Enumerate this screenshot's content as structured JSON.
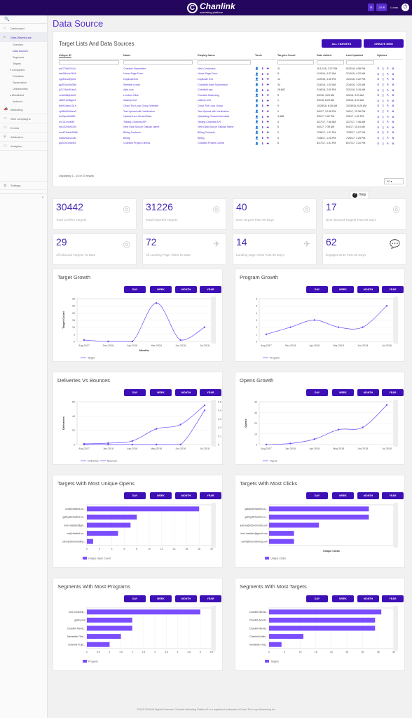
{
  "header": {
    "logo_name": "Chanlink",
    "logo_sub": "marketing platform",
    "logo_mark": "C",
    "badge1": "✉",
    "badge2": "20 ✉",
    "username": "Lucas",
    "power_icon": "⏻"
  },
  "sidebar": {
    "search_icon": "🔍",
    "items": [
      {
        "icon": "home-icon",
        "glyph": "⌂",
        "label": "Dashboard"
      },
      {
        "icon": "database-icon",
        "glyph": "≡",
        "label": "Data Warehouse"
      }
    ],
    "subs": [
      "Overview",
      "Data Sources",
      "Segments",
      "Targets"
    ],
    "companies": "Companies",
    "company_subs": [
      "Chanlinks",
      "Suppression",
      "Unsubscribes"
    ],
    "blocklisted": "Blocklisted",
    "archived": "Archived",
    "items2": [
      {
        "icon": "marketing-icon",
        "glyph": "📣",
        "label": "Marketing"
      },
      {
        "icon": "web-campaigns-icon",
        "glyph": "▭",
        "label": "Web campaigns"
      },
      {
        "icon": "events-icon",
        "glyph": "▭",
        "label": "Events"
      },
      {
        "icon": "attribution-icon",
        "glyph": "⚲",
        "label": "Attribution"
      },
      {
        "icon": "analytics-icon",
        "glyph": "▭",
        "label": "Analytics"
      }
    ],
    "settings": "Settings",
    "settings_glyph": "⚙",
    "collapse_glyph": "‹"
  },
  "page": {
    "title": "Data Source"
  },
  "table_card": {
    "title": "Target Lists And Data Sources",
    "btn_all": "ALL TARGETS",
    "btn_new": "CREATE NEW",
    "columns": [
      "Unique ID",
      "Name",
      "Display Name",
      "Tools",
      "Targets Count",
      "Date Added",
      "Last Updated",
      "Options"
    ],
    "tools_glyph": "👤 ⬇ ✚",
    "options_glyph": "⬇ ▯ ✎ ⊗",
    "rows": [
      [
        "aa727a61911d",
        "Chanlink Newsletter",
        "New Customers",
        "41",
        "11/12/16, 2:37 PM",
        "5/23/18, 4:58 PM"
      ],
      [
        "eeb58m4c2b2b",
        "Home Page Form",
        "Home Page Form",
        "8",
        "1/19/16, 4:22 AM",
        "2/19/16, 4:22 AM"
      ],
      [
        "cg654vvdfyb5d",
        "Duplicatetest",
        "Duplicate test",
        "12",
        "1/19/16, 3:45 PM",
        "1/21/16, 4:22 PM"
      ],
      [
        "gp551ncf0y38b",
        "Website Leads",
        "ChanlinkLeads Submission",
        "34",
        "2/16/16, 1:20 AM",
        "2/18/16, 1:20 AM"
      ],
      [
        "p2174bcf91ea3",
        "data.com",
        "ChanlinkLeys",
        "28,667",
        "2/18/16, 2:30 PM",
        "3/31/16, 3:16 AM"
      ],
      [
        "vxd4486yt4e89",
        "Lenders Click",
        "Chanlink Marketing",
        "5",
        "3/9/16, 3:29 AM",
        "3/9/16, 3:29 AM"
      ],
      [
        "c6871bcf8gpz3",
        "luisleep test",
        "luisleep test",
        "1",
        "3/9/16, 8:23 AM",
        "3/9/16, 8:23 AM"
      ],
      [
        "fpb914adc101e",
        "Close The Loop Group Website",
        "Close The Loop Group",
        "9",
        "10/28/16, 6:26 AM",
        "10/28/16, 6:26 AM"
      ],
      [
        "cp88h90bfhea3",
        "Test Upload with Verification",
        "Test Upload with Verification",
        "0",
        "3/9/17, 12:36 PM",
        "3/9/17, 12:36 PM"
      ],
      [
        "dc54pcxfh898f",
        "Upload from Gerard Data",
        "Uploading Gerards bad data",
        "4,488",
        "3/9/17, 1:02 PM",
        "3/9/17, 1:02 PM"
      ],
      [
        "c4131rvcd08f",
        "Testing Chanlink API",
        "Testing Chanlink API",
        "4",
        "3/17/17, 7:46 AM",
        "3/17/17, 7:46 AM"
      ],
      [
        "m6102r4fn020o",
        "New Data Source Display Name",
        "New Data Source Display Name",
        "5",
        "4/4/17, 7:39 AM",
        "5/4/17, 11:14 AM"
      ],
      [
        "oxe67bdefc5988",
        "Billing Contacts",
        "Billing Contacts",
        "0",
        "7/28/17, 1:07 PM",
        "7/28/17, 1:07 PM"
      ],
      [
        "hd452bdcvc44c",
        "Billing",
        "Billing",
        "5",
        "7/28/17, 1:25 PM",
        "7/28/17, 1:25 PM"
      ],
      [
        "ja151nr1ebe83",
        "Chanlink Project Clients",
        "Chanlink Project Clients",
        "6",
        "8/17/17, 1:41 PM",
        "8/17/17, 1:41 PM"
      ]
    ],
    "displaying": "Displaying 1 - 15 of 15 results",
    "page_size": "20"
  },
  "help": {
    "label": "Help",
    "icon": "?"
  },
  "stats": [
    {
      "value": "30442",
      "label": "Total Confirm Targets",
      "icon": "target-icon",
      "glyph": "◎"
    },
    {
      "value": "31226",
      "label": "Total Imported Targets",
      "icon": "target-icon",
      "glyph": "◎"
    },
    {
      "value": "40",
      "label": "New Targets Past 90 Days",
      "icon": "target-icon",
      "glyph": "◎"
    },
    {
      "value": "17",
      "label": "New Inbound Targets Past 90 Days",
      "icon": "target-icon",
      "glyph": "◎"
    },
    {
      "value": "29",
      "label": "All Inbound Targets To Date",
      "icon": "target-icon",
      "glyph": "◎"
    },
    {
      "value": "72",
      "label": "All Landing Page Visits To Date",
      "icon": "plane-icon",
      "glyph": "✈"
    },
    {
      "value": "14",
      "label": "Landing page Visits Past 90 Days",
      "icon": "plane-icon",
      "glyph": "✈"
    },
    {
      "value": "62",
      "label": "Engagements Past 30 Days",
      "icon": "chat-icon",
      "glyph": "💬"
    }
  ],
  "period_buttons": [
    "DAY",
    "WEEK",
    "MONTH",
    "YEAR"
  ],
  "footer": "©2015-2018 All Rights Reserved. Chanlink Marketing Platform® is a registered trademark of Close The Loop Advertising Inc",
  "chart_data": [
    {
      "id": "target-growth",
      "type": "line",
      "title": "Target Growth",
      "categories": [
        "Aug-2017",
        "Dec-2018",
        "Apr-2018",
        "Mar-2018",
        "Jun-2018",
        "Jul-2018"
      ],
      "ylim": [
        0,
        30
      ],
      "yticks": [
        0,
        5,
        10,
        15,
        20,
        25,
        30
      ],
      "ylabel": "Target Count",
      "xlabel": "Months",
      "series": [
        {
          "name": "Target",
          "values": [
            1,
            0,
            0,
            27,
            1,
            10
          ]
        }
      ]
    },
    {
      "id": "program-growth",
      "type": "line",
      "title": "Program Growth",
      "categories": [
        "Aug-2017",
        "Dec-2018",
        "Apr-2018",
        "Mar-2018",
        "Jun-2018",
        "Jul-2018"
      ],
      "ylim": [
        0,
        6
      ],
      "yticks": [
        0,
        1,
        2,
        3,
        4,
        5,
        6
      ],
      "ylabel": "",
      "xlabel": "",
      "series": [
        {
          "name": "Program",
          "values": [
            1,
            2,
            3,
            2,
            2,
            5
          ]
        }
      ]
    },
    {
      "id": "deliveries-bounces",
      "type": "line",
      "title": "Deliveries Vs Bounces",
      "categories": [
        "Aug-2017",
        "Jan-2018",
        "Apr-2018",
        "May-2018",
        "Jun-2018",
        "Jul-2018"
      ],
      "ylim": [
        0,
        60
      ],
      "yticks": [
        0,
        20,
        40,
        60
      ],
      "y2lim": [
        0,
        0.5
      ],
      "y2ticks": [
        0,
        0.1,
        0.2,
        0.3,
        0.4,
        0.5
      ],
      "ylabel": "Deliveries",
      "y2label": "Bounces",
      "xlabel": "",
      "series": [
        {
          "name": "Deliveries",
          "values": [
            1,
            2,
            5,
            22,
            28,
            55
          ]
        },
        {
          "name": "Bounces",
          "values": [
            0,
            0,
            0,
            0,
            0,
            0.4
          ]
        }
      ]
    },
    {
      "id": "opens-growth",
      "type": "line",
      "title": "Opens Growth",
      "categories": [
        "Aug-2017",
        "Jan-2018",
        "Apr-2018",
        "May-2018",
        "Jun-2018",
        "Jul-2018"
      ],
      "ylim": [
        0,
        40
      ],
      "yticks": [
        0,
        10,
        20,
        30,
        40
      ],
      "ylabel": "Opens",
      "xlabel": "",
      "series": [
        {
          "name": "Opens",
          "values": [
            0,
            1,
            5,
            14,
            16,
            37
          ]
        }
      ]
    },
    {
      "id": "most-unique-opens",
      "type": "bar",
      "title": "Targets With Most Unique Opens",
      "categories": [
        "curt@chanlink.co...",
        "gabby@chanlink.co...",
        "kurk.madden@gm...",
        "sc@chanlink.co...",
        "carm@dmcmanding..."
      ],
      "values": [
        18,
        8,
        7,
        5,
        1
      ],
      "xlim": [
        0,
        20
      ],
      "xticks": [
        0,
        2,
        4,
        6,
        8,
        10,
        12,
        14,
        16,
        18,
        20
      ],
      "series": [
        {
          "name": "Unique Open Count"
        }
      ]
    },
    {
      "id": "most-clicks",
      "type": "bar",
      "title": "Targets With Most Clicks",
      "categories": [
        "gabby@chanlink.co...",
        "gabby@chanlink.co...",
        "joanna@reberrmedia.com",
        "kurk.madden@gmail.com",
        "carm@dmcmanding.com"
      ],
      "values": [
        4,
        4,
        2,
        1,
        1
      ],
      "xlim": [
        0,
        5
      ],
      "xticks": [],
      "xlabel": "Unique Clicks",
      "series": [
        {
          "name": "Unique Clicks"
        }
      ]
    },
    {
      "id": "segments-programs",
      "type": "bar",
      "title": "Segments With Most Programs",
      "categories": [
        "Kurt (Chanlink...",
        "gabby test",
        "Chanlink Newsl...",
        "Newsletter Test...",
        "Chanlink Proje..."
      ],
      "values": [
        5,
        2,
        2,
        1.5,
        1
      ],
      "xlim": [
        0,
        5.5
      ],
      "xticks": [
        0,
        0.5,
        1,
        1.5,
        2,
        2.5,
        3,
        3.5,
        4,
        4.5,
        5,
        5.5
      ],
      "series": [
        {
          "name": "Program"
        }
      ]
    },
    {
      "id": "segments-targets",
      "type": "bar",
      "title": "Segments With Most Targets",
      "categories": [
        "Chanlink Newsl...",
        "Chanlink Newsl...",
        "Chanlink Newsl...",
        "Chanlink Mailin...",
        "Newsletter Test..."
      ],
      "values": [
        36,
        34,
        34,
        11,
        4
      ],
      "xlim": [
        0,
        40
      ],
      "xticks": [
        0,
        5,
        10,
        15,
        20,
        25,
        30,
        35,
        40
      ],
      "series": [
        {
          "name": "Targets"
        }
      ]
    }
  ]
}
